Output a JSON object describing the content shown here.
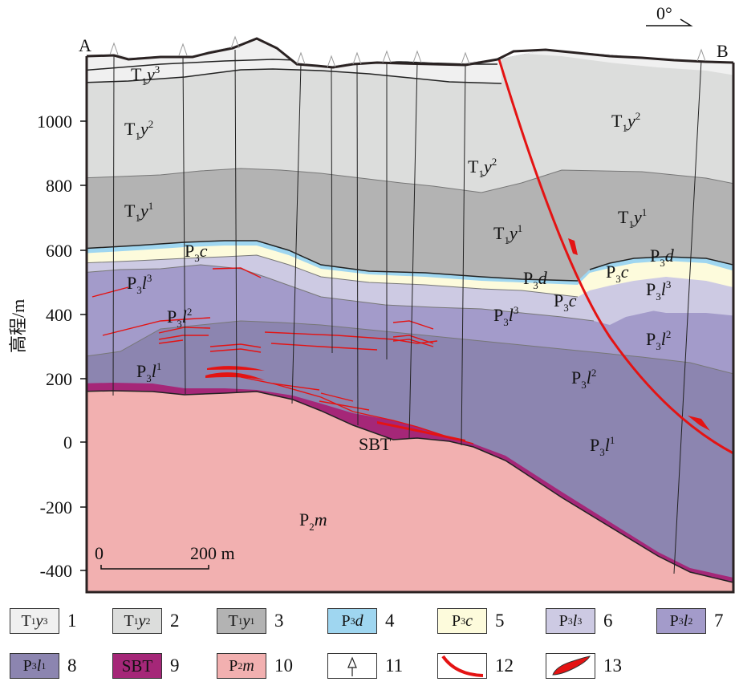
{
  "figure": {
    "point_start": "A",
    "point_end": "B",
    "orientation": "0°",
    "y_axis_label": "高程/m",
    "y_ticks": [
      "1000",
      "800",
      "600",
      "400",
      "200",
      "0",
      "-200",
      "-400"
    ],
    "scale_bar": {
      "start": "0",
      "end": "200 m"
    }
  },
  "units": {
    "T1y3": {
      "base": "T",
      "sub": "1",
      "letter": "y",
      "sup": "3",
      "color": "#f0f0f0"
    },
    "T1y2": {
      "base": "T",
      "sub": "1",
      "letter": "y",
      "sup": "2",
      "color": "#dcdddc"
    },
    "T1y1": {
      "base": "T",
      "sub": "1",
      "letter": "y",
      "sup": "1",
      "color": "#b3b3b3"
    },
    "P3d": {
      "base": "P",
      "sub": "3",
      "letter": "d",
      "sup": "",
      "color": "#9fd6f0"
    },
    "P3c": {
      "base": "P",
      "sub": "3",
      "letter": "c",
      "sup": "",
      "color": "#fdfbdc"
    },
    "P3l3": {
      "base": "P",
      "sub": "3",
      "letter": "l",
      "sup": "3",
      "color": "#cdcae3"
    },
    "P3l2": {
      "base": "P",
      "sub": "3",
      "letter": "l",
      "sup": "2",
      "color": "#a39bca"
    },
    "P3l1": {
      "base": "P",
      "sub": "3",
      "letter": "l",
      "sup": "1",
      "color": "#8c85b0"
    },
    "SBT": {
      "base": "SBT",
      "sub": "",
      "letter": "",
      "sup": "",
      "color": "#a52778"
    },
    "P2m": {
      "base": "P",
      "sub": "2",
      "letter": "m",
      "sup": "",
      "color": "#f2b0b0"
    }
  },
  "section_labels": [
    {
      "unit": "T1y3",
      "text": "T1y3"
    },
    {
      "unit": "T1y2",
      "text": "T1y2"
    },
    {
      "unit": "T1y1",
      "text": "T1y1"
    },
    {
      "unit": "P3c",
      "text": "P3c"
    },
    {
      "unit": "P3l3",
      "text": "P3l3"
    },
    {
      "unit": "P3l2",
      "text": "P3l2"
    },
    {
      "unit": "P3l1",
      "text": "P3l1"
    },
    {
      "unit": "SBT",
      "text": "SBT"
    },
    {
      "unit": "P2m",
      "text": "P2m"
    }
  ],
  "legend": [
    {
      "num": "1",
      "unit": "T1y3"
    },
    {
      "num": "2",
      "unit": "T1y2"
    },
    {
      "num": "3",
      "unit": "T1y1"
    },
    {
      "num": "4",
      "unit": "P3d"
    },
    {
      "num": "5",
      "unit": "P3c"
    },
    {
      "num": "6",
      "unit": "P3l3"
    },
    {
      "num": "7",
      "unit": "P3l2"
    },
    {
      "num": "8",
      "unit": "P3l1"
    },
    {
      "num": "9",
      "unit": "SBT"
    },
    {
      "num": "10",
      "unit": "P2m"
    },
    {
      "num": "11",
      "symbol": "borehole-icon"
    },
    {
      "num": "12",
      "symbol": "fault-icon"
    },
    {
      "num": "13",
      "symbol": "orebody-icon"
    }
  ],
  "colors": {
    "fault": "#e41313",
    "ore": "#e41313",
    "frame": "#2a2222"
  }
}
